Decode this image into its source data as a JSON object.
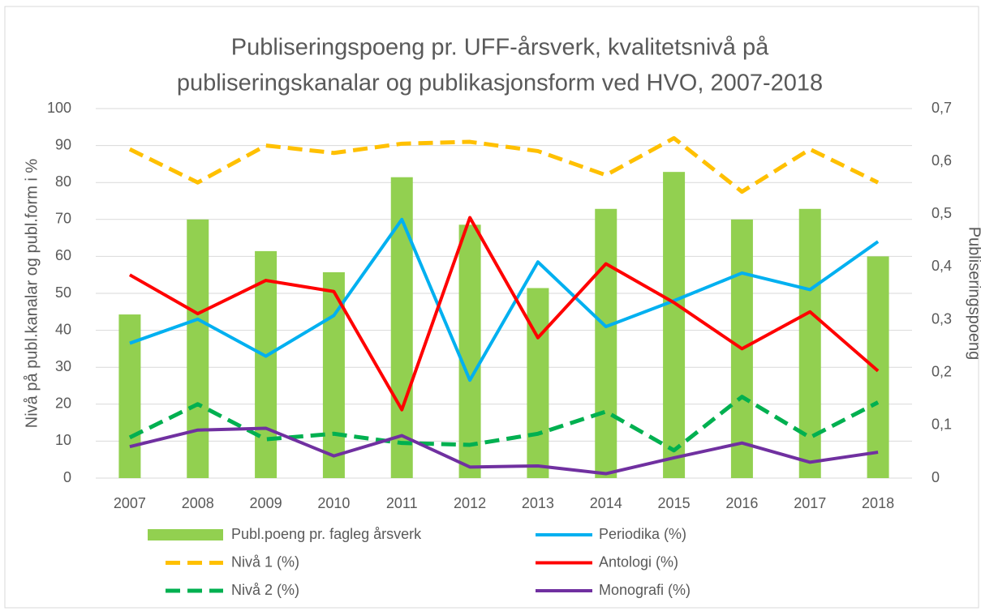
{
  "chart_data": {
    "type": "combo",
    "title": [
      "Publiseringspoeng pr. UFF-årsverk, kvalitetsnivå på",
      "publiseringskanalar og publikasjonsform ved HVO, 2007-2018"
    ],
    "y_label": "Nivå på publ.kanalar og publ.form i %",
    "y2_label": "Publiseringspoeng",
    "categories": [
      "2007",
      "2008",
      "2009",
      "2010",
      "2011",
      "2012",
      "2013",
      "2014",
      "2015",
      "2016",
      "2017",
      "2018"
    ],
    "ylim": [
      0,
      100
    ],
    "yticks": [
      0,
      10,
      20,
      30,
      40,
      50,
      60,
      70,
      80,
      90,
      100
    ],
    "y2lim": [
      0,
      0.7
    ],
    "y2ticks": [
      0,
      {
        "value": 0.1,
        "label": "0,1"
      },
      {
        "value": 0.2,
        "label": "0,2"
      },
      {
        "value": 0.3,
        "label": "0,3"
      },
      {
        "value": 0.4,
        "label": "0,4"
      },
      {
        "value": 0.5,
        "label": "0,5"
      },
      {
        "value": 0.6,
        "label": "0,6"
      },
      {
        "value": 0.7,
        "label": "0,7"
      }
    ],
    "grid": true,
    "legend": "bottom",
    "series": [
      {
        "name": "Publ.poeng pr. fagleg årsverk",
        "type": "bar",
        "axis": "y2",
        "color": "#92d050",
        "values": [
          0.31,
          0.49,
          0.43,
          0.39,
          0.57,
          0.48,
          0.36,
          0.51,
          0.58,
          0.49,
          0.51,
          0.42
        ]
      },
      {
        "name": "Periodika (%)",
        "type": "line",
        "color": "#00b0f0",
        "dashed": false,
        "values": [
          36.5,
          43,
          33,
          44,
          70,
          26.5,
          58.5,
          41,
          48,
          55.5,
          51,
          64
        ]
      },
      {
        "name": "Nivå 1 (%)",
        "type": "line",
        "color": "#ffc000",
        "dashed": true,
        "values": [
          89,
          80,
          90,
          88,
          90.5,
          91,
          88.5,
          82,
          92,
          77.5,
          89,
          80
        ]
      },
      {
        "name": "Antologi (%)",
        "type": "line",
        "color": "#ff0000",
        "dashed": false,
        "values": [
          55,
          44.5,
          53.5,
          50.5,
          18.5,
          70.5,
          38,
          58,
          47.5,
          35,
          45,
          29
        ]
      },
      {
        "name": "Nivå 2 (%)",
        "type": "line",
        "color": "#00b050",
        "dashed": true,
        "values": [
          11,
          20,
          10.5,
          12,
          9.5,
          9,
          12,
          18,
          7.5,
          22,
          11,
          20.5
        ]
      },
      {
        "name": "Monografi (%)",
        "type": "line",
        "color": "#7030a0",
        "dashed": false,
        "values": [
          8.5,
          13,
          13.5,
          6,
          11.5,
          3,
          3.3,
          1.2,
          5.5,
          9.5,
          4.3,
          7
        ]
      }
    ]
  }
}
